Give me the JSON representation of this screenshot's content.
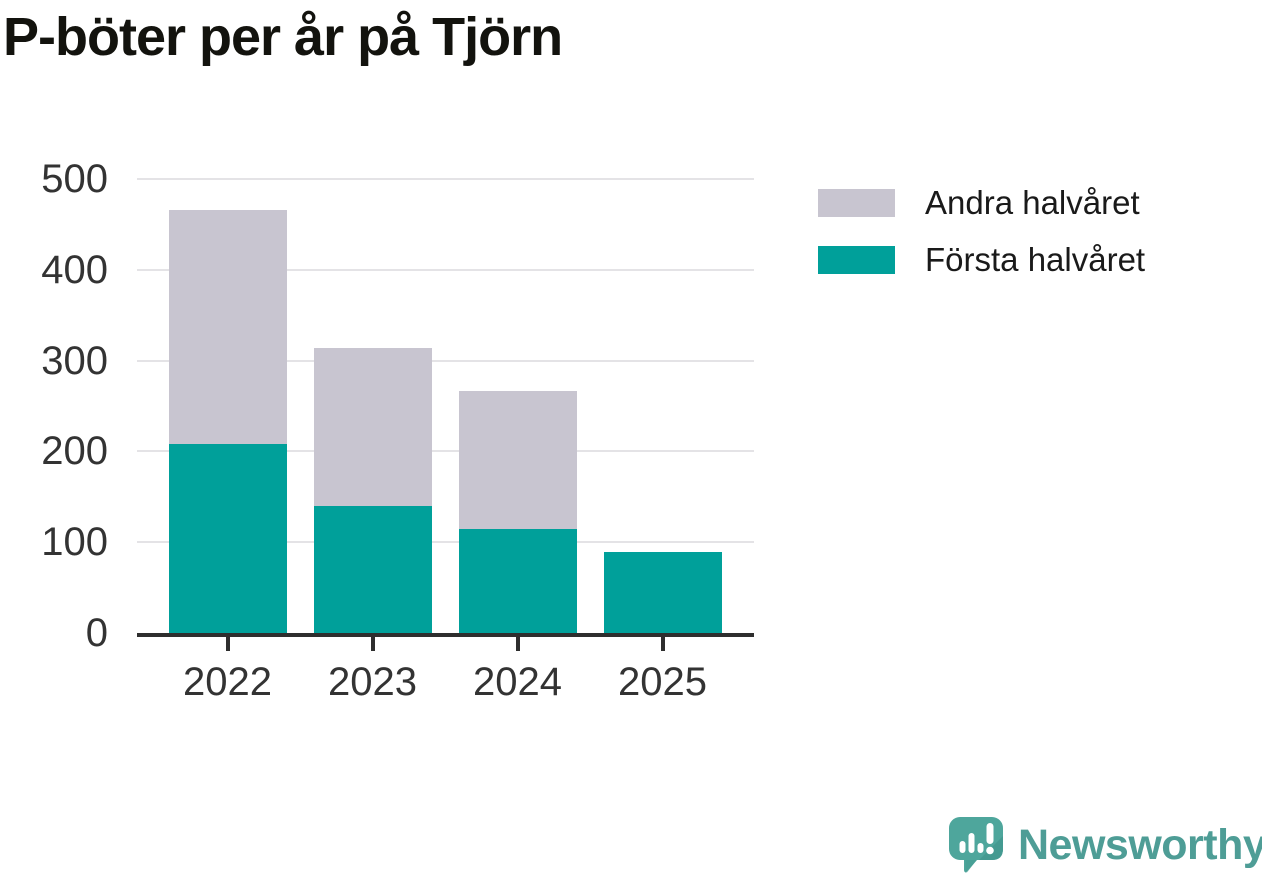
{
  "title": "P-böter per år på Tjörn",
  "legend": {
    "items": [
      {
        "label": "Andra halvåret",
        "color": "#c8c5d0"
      },
      {
        "label": "Första halvåret",
        "color": "#00a09a"
      }
    ]
  },
  "logo": {
    "text": "Newsworthy",
    "color": "#4e9d96"
  },
  "colors": {
    "first_half": "#00a09a",
    "second_half": "#c8c5d0",
    "axis": "#2e2e2e",
    "gridline": "#e4e3e6",
    "tick_label": "#333333"
  },
  "chart_data": {
    "type": "bar",
    "stacked": true,
    "title": "P-böter per år på Tjörn",
    "categories": [
      "2022",
      "2023",
      "2024",
      "2025"
    ],
    "series": [
      {
        "name": "Första halvåret",
        "color": "#00a09a",
        "values": [
          208,
          140,
          115,
          89
        ]
      },
      {
        "name": "Andra halvåret",
        "color": "#c8c5d0",
        "values": [
          258,
          174,
          152,
          0
        ]
      }
    ],
    "totals": [
      466,
      314,
      267,
      89
    ],
    "xlabel": "",
    "ylabel": "",
    "ylim": [
      0,
      500
    ],
    "yticks": [
      0,
      100,
      200,
      300,
      400,
      500
    ],
    "grid": true,
    "legend_position": "right-top"
  }
}
